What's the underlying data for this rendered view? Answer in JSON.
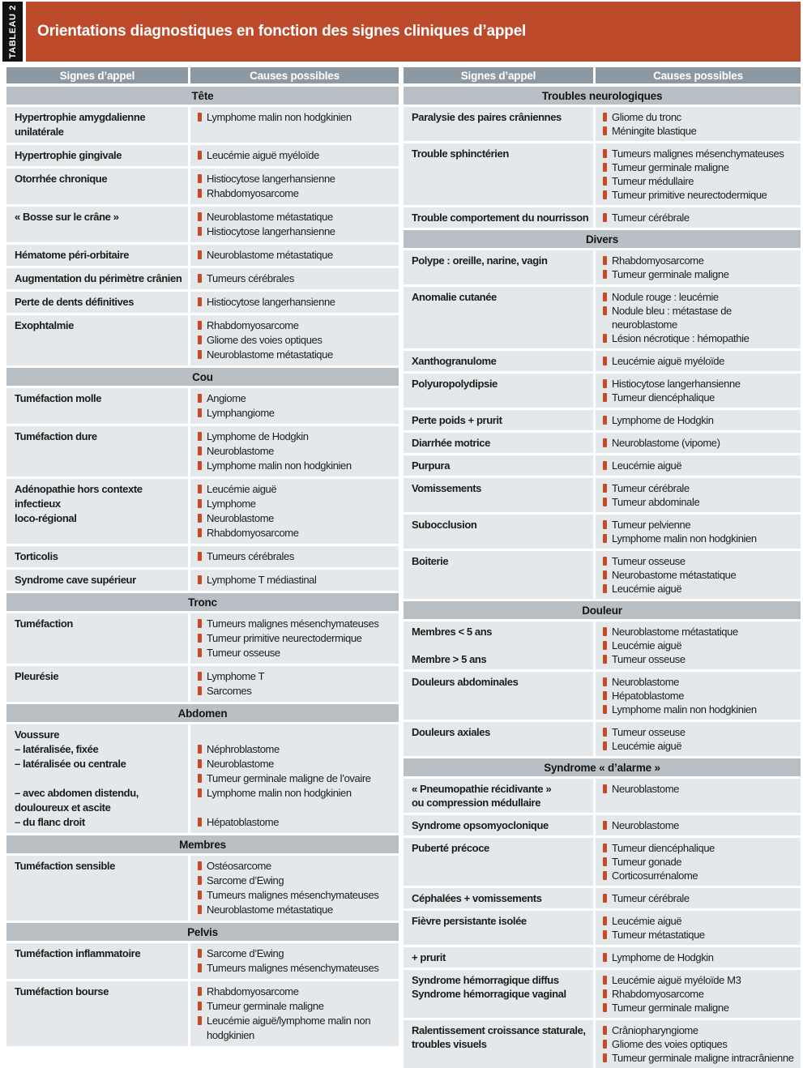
{
  "table": {
    "tab_label": "TABLEAU 2",
    "title": "Orientations diagnostiques en fonction des signes cliniques d’appel",
    "col_headers": {
      "signs": "Signes d’appel",
      "causes": "Causes possibles"
    },
    "halves": [
      {
        "sections": [
          {
            "title": "Tête",
            "rows": [
              {
                "sign": [
                  "Hypertrophie amygdalienne",
                  "unilatérale"
                ],
                "causes": [
                  "Lymphome malin non hodgkinien"
                ]
              },
              {
                "sign": [
                  "Hypertrophie gingivale"
                ],
                "causes": [
                  "Leucémie aiguë myéloïde"
                ]
              },
              {
                "sign": [
                  "Otorrhée chronique"
                ],
                "causes": [
                  "Histiocytose langerhansienne",
                  "Rhabdomyosarcome"
                ]
              },
              {
                "sign": [
                  "« Bosse sur le crâne »"
                ],
                "causes": [
                  "Neuroblastome métastatique",
                  "Histiocytose langerhansienne"
                ]
              },
              {
                "sign": [
                  "Hématome péri-orbitaire"
                ],
                "causes": [
                  "Neuroblastome métastatique"
                ]
              },
              {
                "sign": [
                  "Augmentation du périmètre crânien"
                ],
                "causes": [
                  "Tumeurs cérébrales"
                ]
              },
              {
                "sign": [
                  "Perte de dents définitives"
                ],
                "causes": [
                  "Histiocytose langerhansienne"
                ]
              },
              {
                "sign": [
                  "Exophtalmie"
                ],
                "causes": [
                  "Rhabdomyosarcome",
                  "Gliome des voies optiques",
                  "Neuroblastome métastatique"
                ]
              }
            ]
          },
          {
            "title": "Cou",
            "rows": [
              {
                "sign": [
                  "Tuméfaction molle"
                ],
                "causes": [
                  "Angiome",
                  "Lymphangiome"
                ]
              },
              {
                "sign": [
                  "Tuméfaction dure"
                ],
                "causes": [
                  "Lymphome de Hodgkin",
                  "Neuroblastome",
                  "Lymphome malin non hodgkinien"
                ]
              },
              {
                "sign": [
                  "Adénopathie hors contexte infectieux",
                  "loco-régional"
                ],
                "causes": [
                  "Leucémie aiguë",
                  "Lymphome",
                  "Neuroblastome",
                  "Rhabdomyosarcome"
                ]
              },
              {
                "sign": [
                  "Torticolis"
                ],
                "causes": [
                  "Tumeurs cérébrales"
                ]
              },
              {
                "sign": [
                  "Syndrome cave supérieur"
                ],
                "causes": [
                  "Lymphome T médiastinal"
                ]
              }
            ]
          },
          {
            "title": "Tronc",
            "rows": [
              {
                "sign": [
                  "Tuméfaction"
                ],
                "causes": [
                  "Tumeurs malignes mésenchymateuses",
                  "Tumeur primitive neurectodermique",
                  "Tumeur osseuse"
                ]
              },
              {
                "sign": [
                  "Pleurésie"
                ],
                "causes": [
                  "Lymphome T",
                  "Sarcomes"
                ]
              }
            ]
          },
          {
            "title": "Abdomen",
            "rows": [
              {
                "sign": [
                  "Voussure",
                  "– latéralisée, fixée",
                  "– latéralisée ou centrale",
                  "",
                  "– avec abdomen distendu,",
                  "douloureux et ascite",
                  "– du flanc droit"
                ],
                "causes": [
                  "",
                  "Néphroblastome",
                  "Neuroblastome",
                  "Tumeur germinale maligne de l’ovaire",
                  "Lymphome malin non hodgkinien",
                  "",
                  "Hépatoblastome"
                ]
              }
            ]
          },
          {
            "title": "Membres",
            "rows": [
              {
                "sign": [
                  "Tuméfaction sensible"
                ],
                "causes": [
                  "Ostéosarcome",
                  "Sarcome d’Ewing",
                  "Tumeurs malignes mésenchymateuses",
                  "Neuroblastome métastatique"
                ]
              }
            ]
          },
          {
            "title": "Pelvis",
            "rows": [
              {
                "sign": [
                  "Tuméfaction inflammatoire"
                ],
                "causes": [
                  "Sarcome d’Ewing",
                  "Tumeurs malignes mésenchymateuses"
                ]
              },
              {
                "sign": [
                  "Tuméfaction bourse"
                ],
                "causes": [
                  "Rhabdomyosarcome",
                  "Tumeur germinale maligne",
                  "Leucémie aiguë/lymphome malin non hodgkinien"
                ]
              }
            ]
          }
        ]
      },
      {
        "sections": [
          {
            "title": "Troubles neurologiques",
            "rows": [
              {
                "sign": [
                  "Paralysie des paires crâniennes"
                ],
                "causes": [
                  "Gliome du tronc",
                  "Méningite blastique"
                ]
              },
              {
                "sign": [
                  "Trouble sphinctérien"
                ],
                "causes": [
                  "Tumeurs malignes mésenchymateuses",
                  "Tumeur germinale maligne",
                  "Tumeur médullaire",
                  "Tumeur primitive neurectodermique"
                ]
              },
              {
                "sign": [
                  "Trouble comportement du nourrisson"
                ],
                "causes": [
                  "Tumeur cérébrale"
                ]
              }
            ]
          },
          {
            "title": "Divers",
            "rows": [
              {
                "sign": [
                  "Polype : oreille, narine, vagin"
                ],
                "causes": [
                  "Rhabdomyosarcome",
                  "Tumeur germinale maligne"
                ]
              },
              {
                "sign": [
                  "Anomalie cutanée"
                ],
                "causes": [
                  "Nodule rouge : leucémie",
                  "Nodule bleu : métastase de neuroblastome",
                  "Lésion nécrotique : hémopathie"
                ]
              },
              {
                "sign": [
                  "Xanthogranulome"
                ],
                "causes": [
                  "Leucémie aiguë myéloïde"
                ]
              },
              {
                "sign": [
                  "Polyuropolydipsie"
                ],
                "causes": [
                  "Histiocytose langerhansienne",
                  "Tumeur diencéphalique"
                ]
              },
              {
                "sign": [
                  "Perte poids + prurit"
                ],
                "causes": [
                  "Lymphome de Hodgkin"
                ]
              },
              {
                "sign": [
                  "Diarrhée motrice"
                ],
                "causes": [
                  "Neuroblastome (vipome)"
                ]
              },
              {
                "sign": [
                  "Purpura"
                ],
                "causes": [
                  "Leucémie aiguë"
                ]
              },
              {
                "sign": [
                  "Vomissements"
                ],
                "causes": [
                  "Tumeur cérébrale",
                  "Tumeur abdominale"
                ]
              },
              {
                "sign": [
                  "Subocclusion"
                ],
                "causes": [
                  "Tumeur pelvienne",
                  "Lymphome malin non hodgkinien"
                ]
              },
              {
                "sign": [
                  "Boiterie"
                ],
                "causes": [
                  "Tumeur osseuse",
                  "Neurobastome métastatique",
                  "Leucémie aiguë"
                ]
              }
            ]
          },
          {
            "title": "Douleur",
            "rows": [
              {
                "sign": [
                  "Membres < 5 ans",
                  "",
                  "Membre > 5 ans"
                ],
                "causes": [
                  "Neuroblastome métastatique",
                  "Leucémie aiguë",
                  "Tumeur osseuse"
                ]
              },
              {
                "sign": [
                  "Douleurs abdominales"
                ],
                "causes": [
                  "Neuroblastome",
                  "Hépatoblastome",
                  "Lymphome malin non hodgkinien"
                ]
              },
              {
                "sign": [
                  "Douleurs axiales"
                ],
                "causes": [
                  "Tumeur osseuse",
                  "Leucémie aiguë"
                ]
              }
            ]
          },
          {
            "title": "Syndrome « d’alarme »",
            "rows": [
              {
                "sign": [
                  "« Pneumopathie récidivante »",
                  "ou compression médullaire"
                ],
                "causes": [
                  "Neuroblastome"
                ]
              },
              {
                "sign": [
                  "Syndrome opsomyoclonique"
                ],
                "causes": [
                  "Neuroblastome"
                ]
              },
              {
                "sign": [
                  "Puberté précoce"
                ],
                "causes": [
                  "Tumeur diencéphalique",
                  "Tumeur gonade",
                  "Corticosurrénalome"
                ]
              },
              {
                "sign": [
                  "Céphalées + vomissements"
                ],
                "causes": [
                  "Tumeur cérébrale"
                ]
              },
              {
                "sign": [
                  "Fièvre persistante isolée"
                ],
                "causes": [
                  "Leucémie aiguë",
                  "Tumeur métastatique"
                ]
              },
              {
                "sign": [
                  "+ prurit"
                ],
                "causes": [
                  "Lymphome de Hodgkin"
                ]
              },
              {
                "sign": [
                  "Syndrome hémorragique diffus",
                  "Syndrome hémorragique vaginal"
                ],
                "causes": [
                  "Leucémie aiguë myéloïde M3",
                  "Rhabdomyosarcome",
                  "Tumeur germinale maligne"
                ]
              },
              {
                "sign": [
                  "Ralentissement croissance staturale,",
                  "troubles visuels"
                ],
                "causes": [
                  "Crâniopharyngiome",
                  "Gliome des voies optiques",
                  "Tumeur germinale maligne intracrânienne"
                ]
              }
            ]
          }
        ]
      }
    ]
  },
  "colors": {
    "banner": "#bd4a2a",
    "bullet": "#c54b27",
    "header_bg": "#8d99a2",
    "band_bg": "#b8c0c6",
    "row_bg": "#e5e8ea",
    "tab_bg": "#121212"
  }
}
